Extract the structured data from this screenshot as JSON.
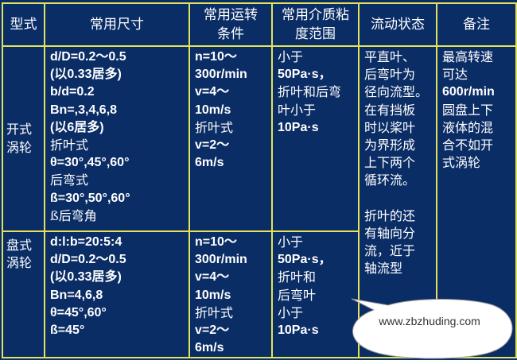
{
  "headers": [
    "型式",
    "常用尺寸",
    "常用运转\n条件",
    "常用介质粘\n度范围",
    "流动状态",
    "备注"
  ],
  "rows": [
    {
      "type": [
        "开式",
        "涡轮"
      ],
      "size": [
        "d/D=0.2～0.5",
        "(以0.33居多)",
        "b/d=0.2",
        "Bn=,3,4,6,8",
        "(以6居多)",
        "折叶式",
        "θ=30°,45°,60°",
        "后弯式",
        "ß=30°,50°,60°",
        "ß后弯角"
      ],
      "conditions": [
        "n=10～",
        "300r/min",
        "v=4～",
        "10m/s",
        "折叶式",
        "v=2～",
        "6m/s"
      ],
      "viscosity": [
        "小于",
        "50Pa·s，",
        "折叶和后弯",
        "叶小于",
        "10Pa·s"
      ],
      "remark": [
        "最高转速",
        "可达",
        "600r/min",
        "圆盘上下",
        "液体的混",
        "合不如开",
        "式涡轮"
      ]
    },
    {
      "type": [
        "盘式",
        "涡轮"
      ],
      "size": [
        "d:l:b=20:5:4",
        "d/D=0.2～0.5",
        "(以0.33居多)",
        "Bn=4,6,8",
        "θ=45°,60°",
        "ß=45°"
      ],
      "conditions": [
        "n=10～",
        "300r/min",
        "v=4～",
        "10m/s",
        "折叶式",
        "v=2～",
        "6m/s"
      ],
      "viscosity": [
        "小于",
        "50Pa·s，",
        "折叶和",
        "后弯叶",
        "小于",
        "10Pa·s"
      ]
    }
  ],
  "flow_state": [
    "平直叶、",
    "后弯叶为",
    "径向流型。",
    "在有挡板",
    "时以桨叶",
    "为界形成",
    "上下两个",
    "循环流。",
    "",
    "折叶的还",
    "有轴向分",
    "流，近于",
    "轴流型"
  ],
  "watermark": "www.zbzhuding.com",
  "colors": {
    "background": "#0b2d66",
    "border": "#e2e35a",
    "text": "#ffffff"
  }
}
